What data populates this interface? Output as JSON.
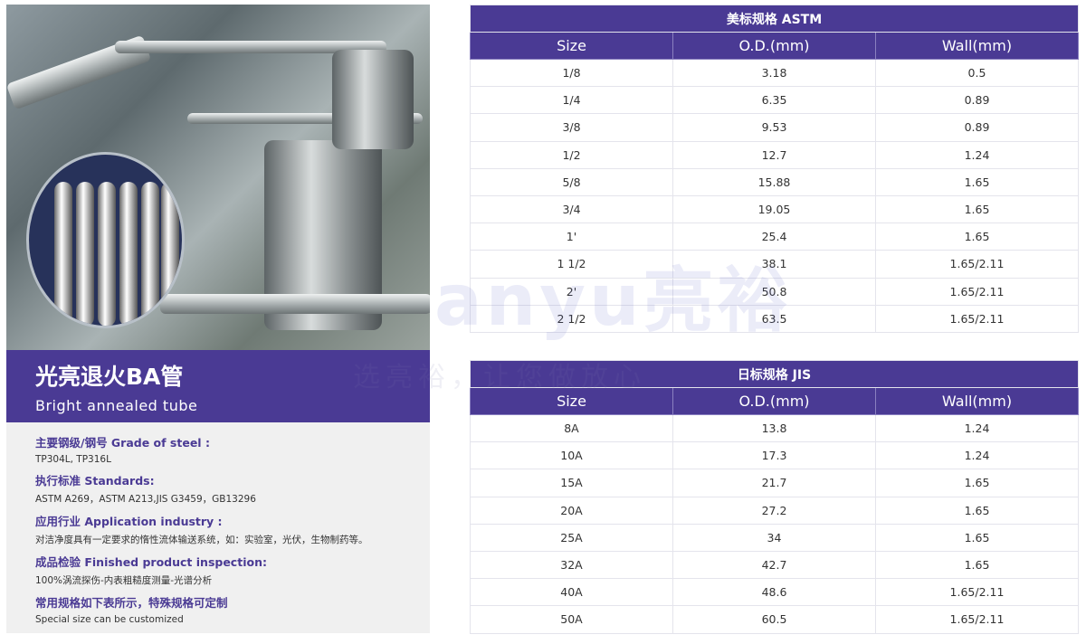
{
  "product": {
    "title": "光亮退火BA管",
    "subtitle": "Bright annealed tube"
  },
  "info": [
    {
      "label": "主要钢级/钢号  Grade of steel :",
      "value": "TP304L, TP316L"
    },
    {
      "label": "执行标准  Standards:",
      "value": "ASTM A269，ASTM A213,JIS G3459，GB13296"
    },
    {
      "label": "应用行业  Application industry :",
      "value": "对洁净度具有一定要求的惰性流体输送系统，如：实验室，光伏，生物制药等。"
    },
    {
      "label": "成品检验  Finished product inspection:",
      "value": "100%涡流探伤-内表粗糙度测量-光谱分析"
    },
    {
      "label": "常用规格如下表所示，特殊规格可定制",
      "value": "Special size can be customized"
    }
  ],
  "astm": {
    "title": "美标规格 ASTM",
    "headers": [
      "Size",
      "O.D.(mm)",
      "Wall(mm)"
    ],
    "rows": [
      [
        "1/8",
        "3.18",
        "0.5"
      ],
      [
        "1/4",
        "6.35",
        "0.89"
      ],
      [
        "3/8",
        "9.53",
        "0.89"
      ],
      [
        "1/2",
        "12.7",
        "1.24"
      ],
      [
        "5/8",
        "15.88",
        "1.65"
      ],
      [
        "3/4",
        "19.05",
        "1.65"
      ],
      [
        "1'",
        "25.4",
        "1.65"
      ],
      [
        "1 1/2",
        "38.1",
        "1.65/2.11"
      ],
      [
        "2'",
        "50.8",
        "1.65/2.11"
      ],
      [
        "2 1/2",
        "63.5",
        "1.65/2.11"
      ]
    ]
  },
  "jis": {
    "title": "日标规格 JIS",
    "headers": [
      "Size",
      "O.D.(mm)",
      "Wall(mm)"
    ],
    "rows": [
      [
        "8A",
        "13.8",
        "1.24"
      ],
      [
        "10A",
        "17.3",
        "1.24"
      ],
      [
        "15A",
        "21.7",
        "1.65"
      ],
      [
        "20A",
        "27.2",
        "1.65"
      ],
      [
        "25A",
        "34",
        "1.65"
      ],
      [
        "32A",
        "42.7",
        "1.65"
      ],
      [
        "40A",
        "48.6",
        "1.65/2.11"
      ],
      [
        "50A",
        "60.5",
        "1.65/2.11"
      ]
    ]
  },
  "watermark": {
    "logo": "anyu亮裕",
    "slogan": "选亮裕，让您做放心"
  },
  "colors": {
    "accent": "#4a3a94"
  }
}
